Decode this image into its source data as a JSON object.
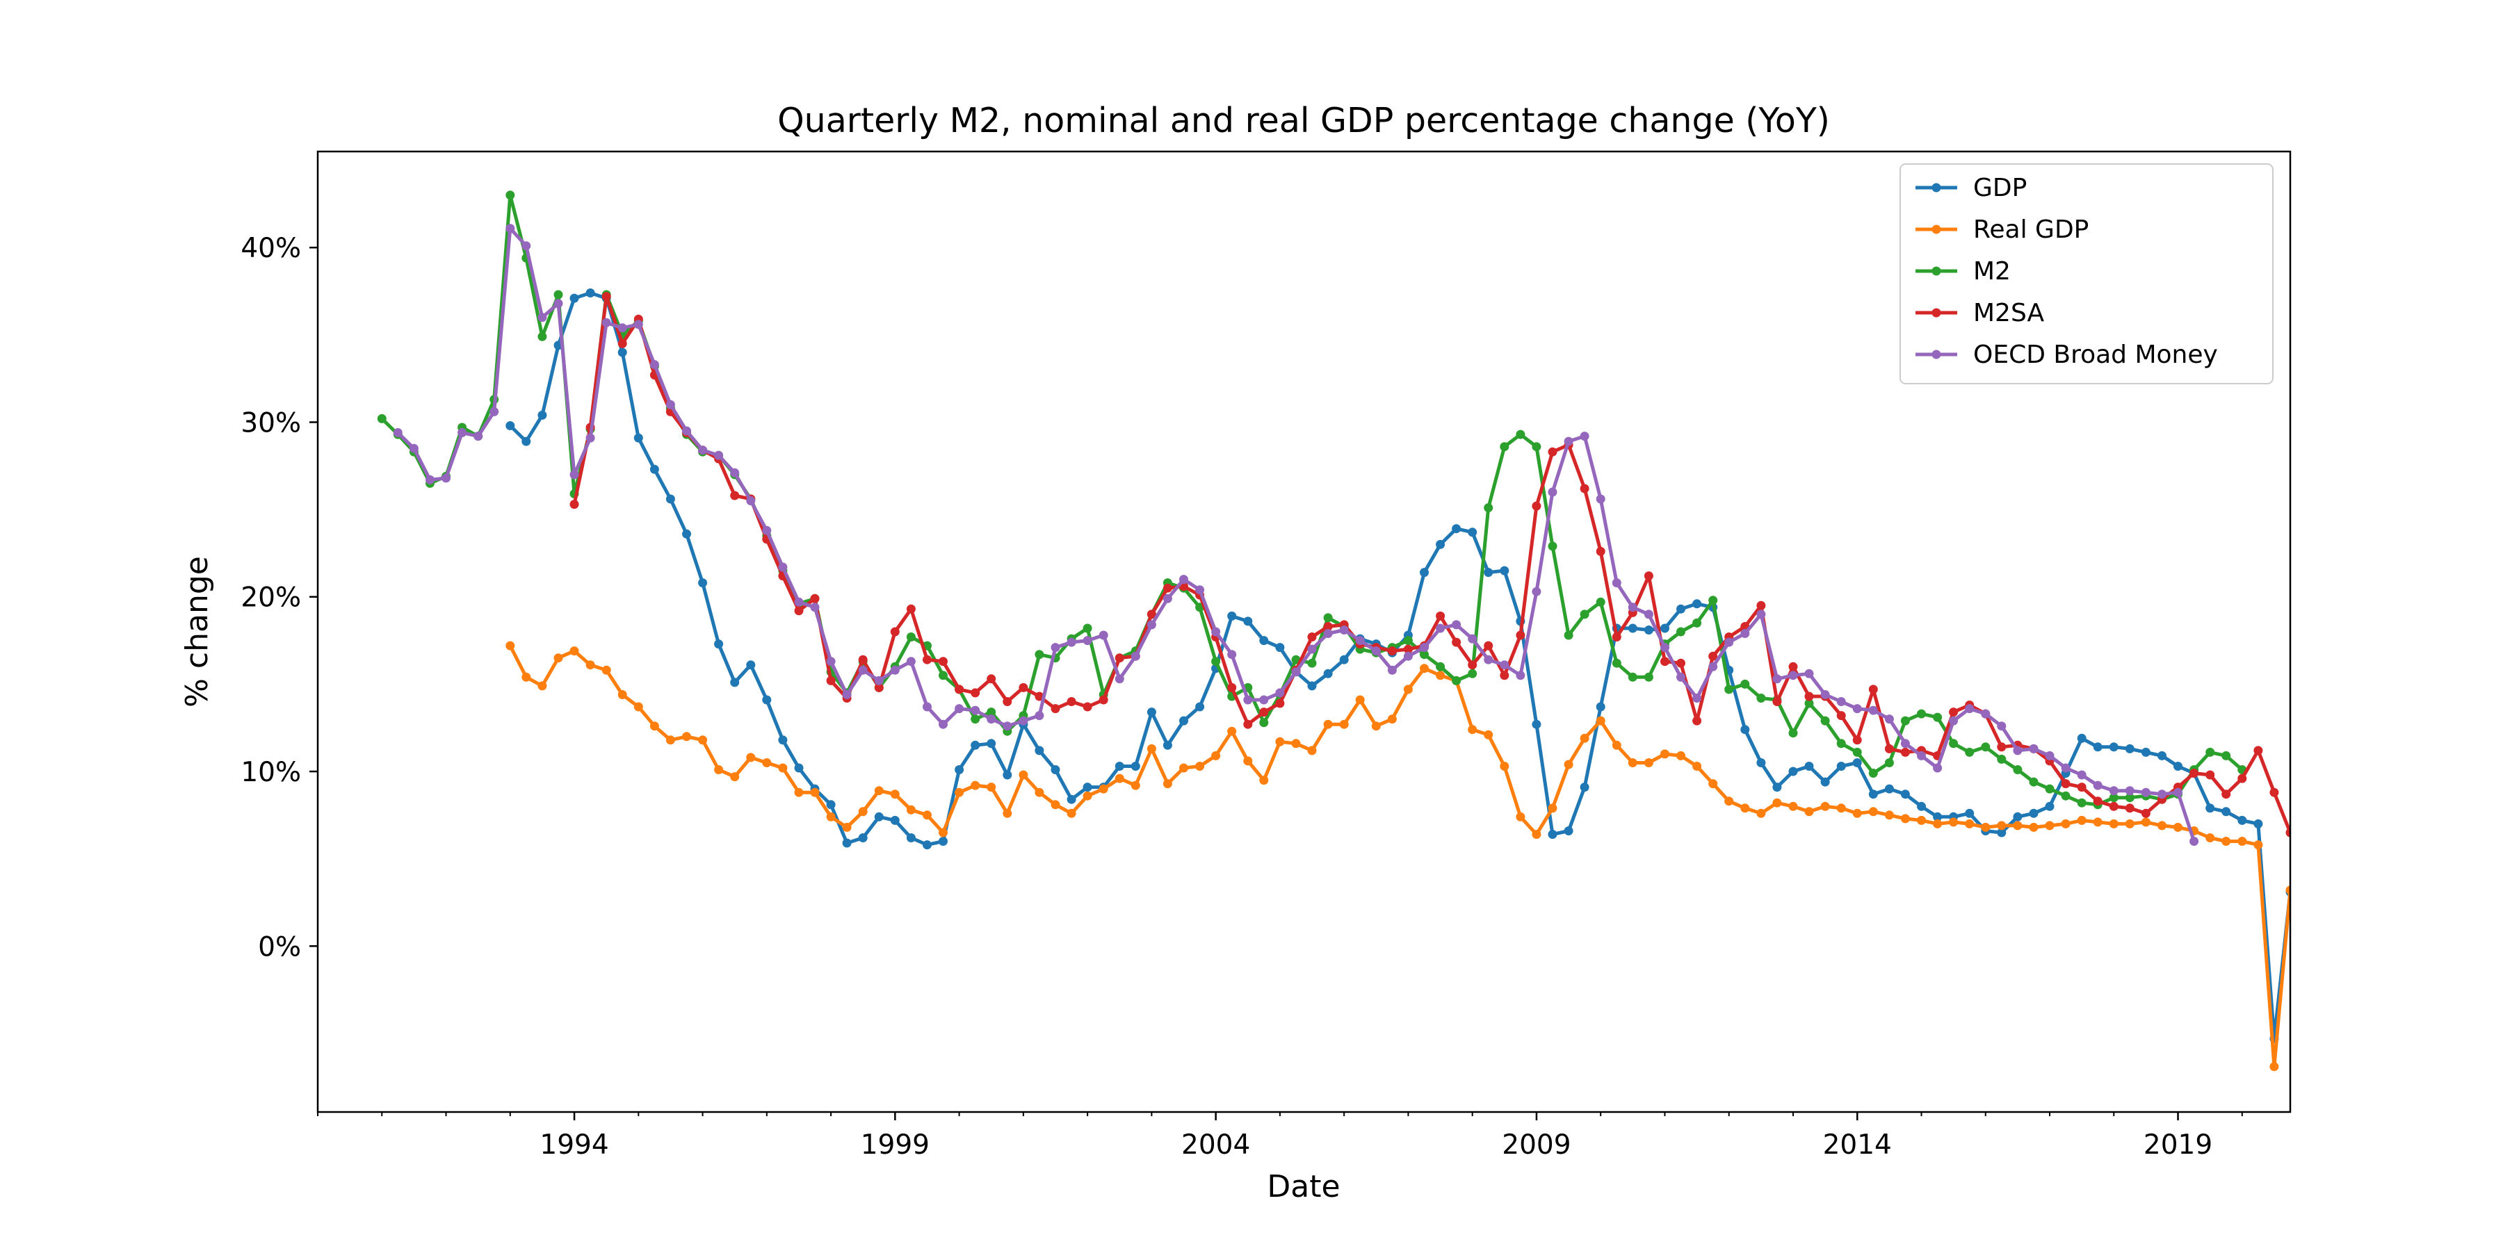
{
  "chart_data": {
    "type": "line",
    "title": "Quarterly M2, nominal and real GDP percentage change (YoY)",
    "xlabel": "Date",
    "ylabel": "% change",
    "xlim": [
      1990.0,
      2020.75
    ],
    "ylim": [
      -9.5,
      45.5
    ],
    "xticks": [
      1994,
      1999,
      2004,
      2009,
      2014,
      2019
    ],
    "xtick_labels": [
      "1994",
      "1999",
      "2004",
      "2009",
      "2014",
      "2019"
    ],
    "yticks": [
      0,
      10,
      20,
      30,
      40
    ],
    "ytick_labels": [
      "0%",
      "10%",
      "20%",
      "30%",
      "40%"
    ],
    "grid": false,
    "legend_position": "top-right",
    "series": [
      {
        "name": "GDP",
        "color": "#1f77b4",
        "start": 1993.0,
        "values": [
          29.8,
          28.9,
          30.4,
          34.4,
          37.1,
          37.4,
          37.1,
          34.0,
          29.1,
          27.3,
          25.6,
          23.6,
          20.8,
          17.3,
          15.1,
          16.1,
          14.1,
          11.8,
          10.2,
          9.0,
          8.1,
          5.9,
          6.2,
          7.4,
          7.2,
          6.2,
          5.8,
          6.0,
          10.1,
          11.5,
          11.6,
          9.8,
          12.7,
          11.2,
          10.1,
          8.4,
          9.1,
          9.1,
          10.3,
          10.3,
          13.4,
          11.5,
          12.9,
          13.7,
          15.9,
          18.9,
          18.6,
          17.5,
          17.1,
          15.7,
          14.9,
          15.6,
          16.4,
          17.6,
          17.3,
          16.8,
          17.8,
          21.4,
          23.0,
          23.9,
          23.7,
          21.4,
          21.5,
          18.6,
          12.7,
          6.4,
          6.6,
          9.1,
          13.7,
          18.2,
          18.2,
          18.1,
          18.2,
          19.3,
          19.6,
          19.4,
          15.8,
          12.4,
          10.5,
          9.1,
          10.0,
          10.3,
          9.4,
          10.3,
          10.5,
          8.7,
          9.0,
          8.7,
          8.0,
          7.4,
          7.4,
          7.6,
          6.6,
          6.5,
          7.4,
          7.6,
          8.0,
          9.9,
          11.9,
          11.4,
          11.4,
          11.3,
          11.1,
          10.9,
          10.3,
          9.9,
          7.9,
          7.7,
          7.2,
          7.0,
          -5.3,
          3.1,
          5.6,
          6.5
        ]
      },
      {
        "name": "Real GDP",
        "color": "#ff7f0e",
        "start": 1993.0,
        "values": [
          17.2,
          15.4,
          14.9,
          16.5,
          16.9,
          16.1,
          15.8,
          14.4,
          13.7,
          12.6,
          11.8,
          12.0,
          11.8,
          10.1,
          9.7,
          10.8,
          10.5,
          10.2,
          8.8,
          8.8,
          7.4,
          6.8,
          7.7,
          8.9,
          8.7,
          7.8,
          7.5,
          6.5,
          8.8,
          9.2,
          9.1,
          7.6,
          9.8,
          8.8,
          8.1,
          7.6,
          8.6,
          9.0,
          9.6,
          9.2,
          11.3,
          9.3,
          10.2,
          10.3,
          10.9,
          12.3,
          10.6,
          9.5,
          11.7,
          11.6,
          11.2,
          12.7,
          12.7,
          14.1,
          12.6,
          13.0,
          14.7,
          15.9,
          15.5,
          15.2,
          12.4,
          12.1,
          10.3,
          7.4,
          6.4,
          7.9,
          10.4,
          11.9,
          12.9,
          11.5,
          10.5,
          10.5,
          11.0,
          10.9,
          10.3,
          9.3,
          8.3,
          7.9,
          7.6,
          8.2,
          8.0,
          7.7,
          8.0,
          7.9,
          7.6,
          7.7,
          7.5,
          7.3,
          7.2,
          7.0,
          7.1,
          7.0,
          6.8,
          6.9,
          6.9,
          6.8,
          6.9,
          7.0,
          7.2,
          7.1,
          7.0,
          7.0,
          7.1,
          6.9,
          6.8,
          6.6,
          6.2,
          6.0,
          6.0,
          5.8,
          -6.9,
          3.2,
          4.9,
          6.5
        ]
      },
      {
        "name": "M2",
        "color": "#2ca02c",
        "start": 1991.0,
        "values": [
          30.2,
          29.3,
          28.3,
          26.5,
          26.9,
          29.7,
          29.2,
          31.3,
          43.0,
          39.4,
          34.9,
          37.3,
          25.9,
          29.6,
          37.3,
          35.0,
          35.8,
          33.2,
          30.8,
          29.3,
          28.3,
          28.1,
          27.0,
          25.6,
          23.5,
          21.5,
          19.6,
          19.9,
          15.7,
          14.5,
          16.3,
          14.8,
          16.0,
          17.7,
          17.2,
          15.5,
          14.7,
          13.0,
          13.4,
          12.3,
          13.2,
          16.7,
          16.5,
          17.6,
          18.2,
          14.4,
          16.5,
          16.9,
          19.0,
          20.8,
          20.5,
          19.4,
          16.3,
          14.3,
          14.8,
          12.8,
          14.4,
          16.4,
          16.2,
          18.8,
          18.3,
          17.0,
          16.8,
          17.1,
          17.5,
          16.7,
          16.0,
          15.2,
          15.6,
          25.1,
          28.6,
          29.3,
          28.6,
          22.9,
          17.8,
          19.0,
          19.7,
          16.2,
          15.4,
          15.4,
          17.3,
          18.0,
          18.5,
          19.8,
          14.7,
          15.0,
          14.2,
          14.1,
          12.2,
          13.9,
          12.9,
          11.6,
          11.1,
          9.9,
          10.5,
          12.9,
          13.3,
          13.1,
          11.6,
          11.1,
          11.4,
          10.7,
          10.1,
          9.4,
          9.0,
          8.6,
          8.2,
          8.1,
          8.5,
          8.5,
          8.6,
          8.4,
          8.7,
          10.1,
          11.1,
          10.9,
          10.1
        ]
      },
      {
        "name": "M2SA",
        "color": "#d62728",
        "start": 1994.0,
        "values": [
          25.3,
          29.7,
          37.2,
          34.5,
          35.9,
          32.7,
          30.6,
          29.4,
          28.4,
          27.9,
          25.8,
          25.6,
          23.3,
          21.2,
          19.2,
          19.9,
          15.2,
          14.2,
          16.4,
          14.8,
          18.0,
          19.3,
          16.4,
          16.3,
          14.7,
          14.5,
          15.3,
          14.0,
          14.8,
          14.3,
          13.6,
          14.0,
          13.7,
          14.1,
          16.5,
          16.6,
          19.0,
          20.5,
          20.6,
          20.1,
          17.7,
          14.8,
          12.7,
          13.4,
          13.9,
          15.8,
          17.7,
          18.3,
          18.4,
          17.3,
          17.1,
          16.9,
          17.0,
          17.2,
          18.9,
          17.4,
          16.1,
          17.2,
          15.5,
          17.8,
          25.2,
          28.3,
          28.7,
          26.2,
          22.6,
          17.7,
          19.1,
          21.2,
          16.3,
          16.2,
          12.9,
          16.6,
          17.7,
          18.3,
          19.5,
          14.0,
          16.0,
          14.3,
          14.3,
          13.2,
          11.8,
          14.7,
          11.3,
          11.1,
          11.2,
          10.9,
          13.4,
          13.8,
          13.3,
          11.4,
          11.5,
          11.3,
          10.6,
          9.3,
          9.1,
          8.3,
          8.0,
          7.9,
          7.6,
          8.4,
          9.1,
          9.9,
          9.8,
          8.7,
          9.6,
          11.2,
          8.8,
          6.5
        ]
      },
      {
        "name": "OECD Broad Money",
        "color": "#9467bd",
        "start": 1991.25,
        "values": [
          29.4,
          28.5,
          26.7,
          26.8,
          29.4,
          29.2,
          30.6,
          41.1,
          40.1,
          36.0,
          36.8,
          27.0,
          29.1,
          35.7,
          35.4,
          35.6,
          33.3,
          31.0,
          29.5,
          28.4,
          28.1,
          27.1,
          25.5,
          23.8,
          21.7,
          19.7,
          19.4,
          16.3,
          14.4,
          15.8,
          15.2,
          15.8,
          16.3,
          13.7,
          12.7,
          13.6,
          13.5,
          13.0,
          12.6,
          12.9,
          13.2,
          17.1,
          17.4,
          17.5,
          17.8,
          15.3,
          16.6,
          18.4,
          19.9,
          21.0,
          20.4,
          18.0,
          16.7,
          14.1,
          14.1,
          14.5,
          15.7,
          17.0,
          17.9,
          18.1,
          17.5,
          16.9,
          15.8,
          16.6,
          17.1,
          18.2,
          18.4,
          17.6,
          16.4,
          16.1,
          15.5,
          20.3,
          26.0,
          28.9,
          29.2,
          25.6,
          20.8,
          19.4,
          19.0,
          17.1,
          15.4,
          14.2,
          16.0,
          17.4,
          17.9,
          19.0,
          15.3,
          15.5,
          15.6,
          14.4,
          14.0,
          13.6,
          13.5,
          13.0,
          11.6,
          10.9,
          10.2,
          12.9,
          13.6,
          13.3,
          12.6,
          11.2,
          11.3,
          10.9,
          10.2,
          9.8,
          9.2,
          8.9,
          8.9,
          8.8,
          8.7,
          8.8,
          6.0
        ]
      }
    ]
  }
}
